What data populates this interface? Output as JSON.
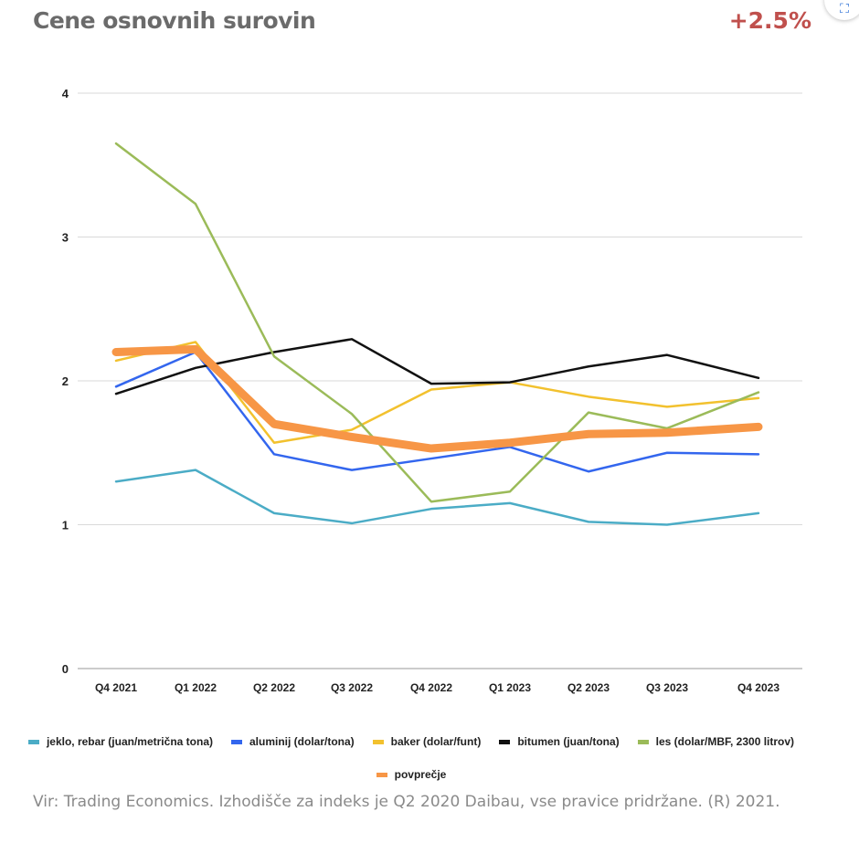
{
  "header": {
    "title": "Cene osnovnih surovin",
    "change": "+2.5%",
    "change_color": "#c0504d",
    "expand_icon": "expand-icon"
  },
  "chart_data": {
    "type": "line",
    "title": "Cene osnovnih surovin",
    "categories": [
      "Q4 2021",
      "Q1 2022",
      "Q2 2022",
      "Q3 2022",
      "Q4 2022",
      "Q1 2023",
      "Q2 2023",
      "Q3 2023",
      "Q4 2023"
    ],
    "y_ticks": [
      "0",
      "1",
      "2",
      "3",
      "4"
    ],
    "ylim": [
      0,
      4
    ],
    "grid": true,
    "legend_position": "bottom",
    "series": [
      {
        "name": "jeklo, rebar (juan/metrična tona)",
        "color": "#4bacc6",
        "values": [
          1.3,
          1.38,
          1.08,
          1.01,
          1.11,
          1.15,
          1.02,
          1.0,
          1.08
        ]
      },
      {
        "name": "aluminij (dolar/tona)",
        "color": "#3366ee",
        "values": [
          1.96,
          2.2,
          1.49,
          1.38,
          1.46,
          1.54,
          1.37,
          1.5,
          1.49
        ]
      },
      {
        "name": "baker (dolar/funt)",
        "color": "#f2c12e",
        "values": [
          2.14,
          2.27,
          1.57,
          1.66,
          1.94,
          1.99,
          1.89,
          1.82,
          1.88
        ]
      },
      {
        "name": "bitumen (juan/tona)",
        "color": "#111111",
        "values": [
          1.91,
          2.09,
          2.2,
          2.29,
          1.98,
          1.99,
          2.1,
          2.18,
          2.02
        ]
      },
      {
        "name": "les (dolar/MBF, 2300 litrov)",
        "color": "#9bbb59",
        "values": [
          3.65,
          3.23,
          2.17,
          1.77,
          1.16,
          1.23,
          1.78,
          1.67,
          1.92
        ]
      },
      {
        "name": "povprečje",
        "color": "#f79646",
        "values": [
          2.2,
          2.22,
          1.7,
          1.61,
          1.53,
          1.57,
          1.63,
          1.64,
          1.68
        ]
      }
    ]
  },
  "source": "Vir: Trading Economics. Izhodišče za indeks je Q2 2020  Daibau, vse pravice pridržane. (R) 2021."
}
